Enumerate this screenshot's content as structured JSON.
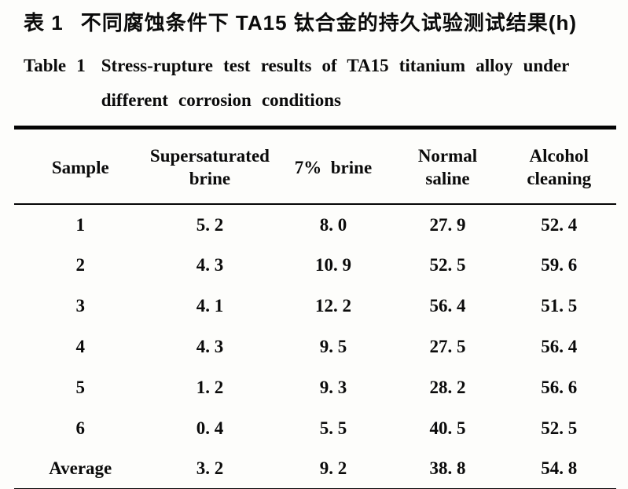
{
  "page": {
    "background": "#fdfdfb",
    "ink": "#0b0b0b"
  },
  "title": {
    "zh_label": "表 1",
    "zh_text": "不同腐蚀条件下 TA15 钛合金的持久试验测试结果(h)",
    "en_label": "Table 1",
    "en_text": "Stress-rupture test results of TA15 titanium alloy under different corrosion conditions"
  },
  "table": {
    "columns": [
      "Sample",
      "Supersaturated\nbrine",
      "7% brine",
      "Normal\nsaline",
      "Alcohol\ncleaning"
    ],
    "rows": [
      {
        "cells": [
          "1",
          "5. 2",
          "8. 0",
          "27. 9",
          "52. 4"
        ]
      },
      {
        "cells": [
          "2",
          "4. 3",
          "10. 9",
          "52. 5",
          "59. 6"
        ]
      },
      {
        "cells": [
          "3",
          "4. 1",
          "12. 2",
          "56. 4",
          "51. 5"
        ]
      },
      {
        "cells": [
          "4",
          "4. 3",
          "9. 5",
          "27. 5",
          "56. 4"
        ]
      },
      {
        "cells": [
          "5",
          "1. 2",
          "9. 3",
          "28. 2",
          "56. 6"
        ]
      },
      {
        "cells": [
          "6",
          "0. 4",
          "5. 5",
          "40. 5",
          "52. 5"
        ]
      },
      {
        "cells": [
          "Average",
          "3. 2",
          "9. 2",
          "38. 8",
          "54. 8"
        ]
      }
    ]
  },
  "chart_data": {
    "type": "table",
    "title": "Table 1 Stress-rupture test results of TA15 titanium alloy under different corrosion conditions (h)",
    "columns": [
      "Sample",
      "Supersaturated brine",
      "7% brine",
      "Normal saline",
      "Alcohol cleaning"
    ],
    "rows": [
      [
        1,
        5.2,
        8.0,
        27.9,
        52.4
      ],
      [
        2,
        4.3,
        10.9,
        52.5,
        59.6
      ],
      [
        3,
        4.1,
        12.2,
        56.4,
        51.5
      ],
      [
        4,
        4.3,
        9.5,
        27.5,
        56.4
      ],
      [
        5,
        1.2,
        9.3,
        28.2,
        56.6
      ],
      [
        6,
        0.4,
        5.5,
        40.5,
        52.5
      ],
      [
        "Average",
        3.2,
        9.2,
        38.8,
        54.8
      ]
    ]
  }
}
